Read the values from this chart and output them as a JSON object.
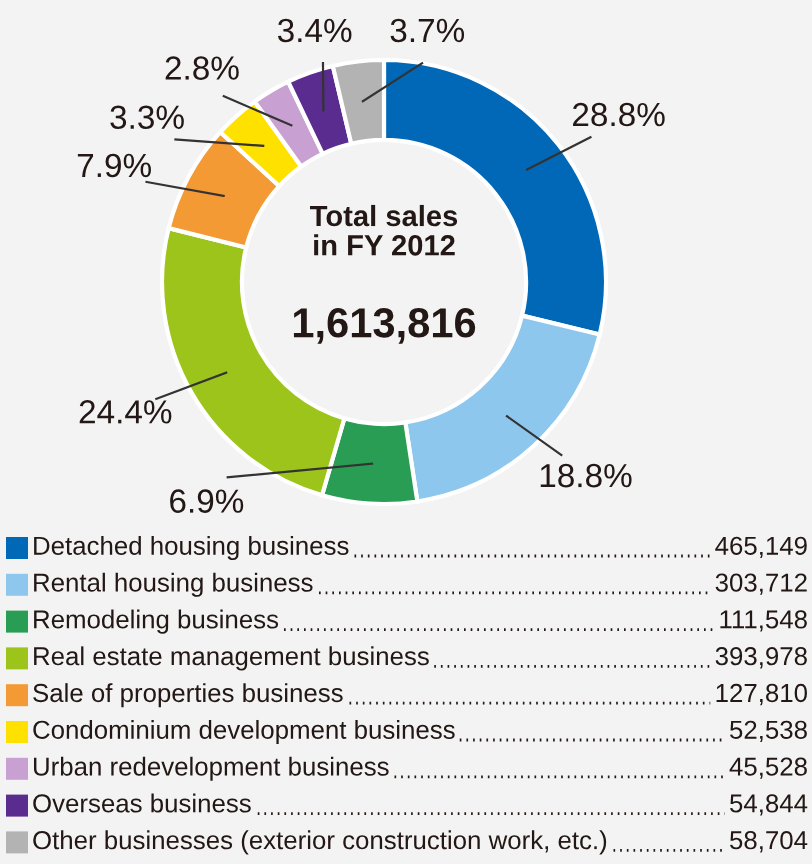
{
  "chart_data": {
    "type": "donut",
    "categories": [
      "Detached housing business",
      "Rental housing business",
      "Remodeling business",
      "Real estate management business",
      "Sale of properties business",
      "Condominium development business",
      "Urban redevelopment business",
      "Overseas business",
      "Other businesses (exterior construction work, etc.)"
    ],
    "values": [
      28.8,
      18.8,
      6.9,
      24.4,
      7.9,
      3.3,
      2.8,
      3.4,
      3.7
    ],
    "value_labels": [
      "28.8%",
      "18.8%",
      "6.9%",
      "24.4%",
      "7.9%",
      "3.3%",
      "2.8%",
      "3.4%",
      "3.7%"
    ],
    "colors": [
      "#0068b7",
      "#8ec7ee",
      "#2a9d55",
      "#9dc41a",
      "#f39a34",
      "#ffe100",
      "#c9a0d2",
      "#5b2c8f",
      "#b3b3b3"
    ],
    "annotations": [
      "Total sales\nin FY 2012",
      "1,613,816",
      "465,149",
      "303,712",
      "111,548",
      "393,978",
      "127,810",
      "52,538",
      "45,528",
      "54,844",
      "58,704"
    ],
    "legend": "bottom"
  }
}
